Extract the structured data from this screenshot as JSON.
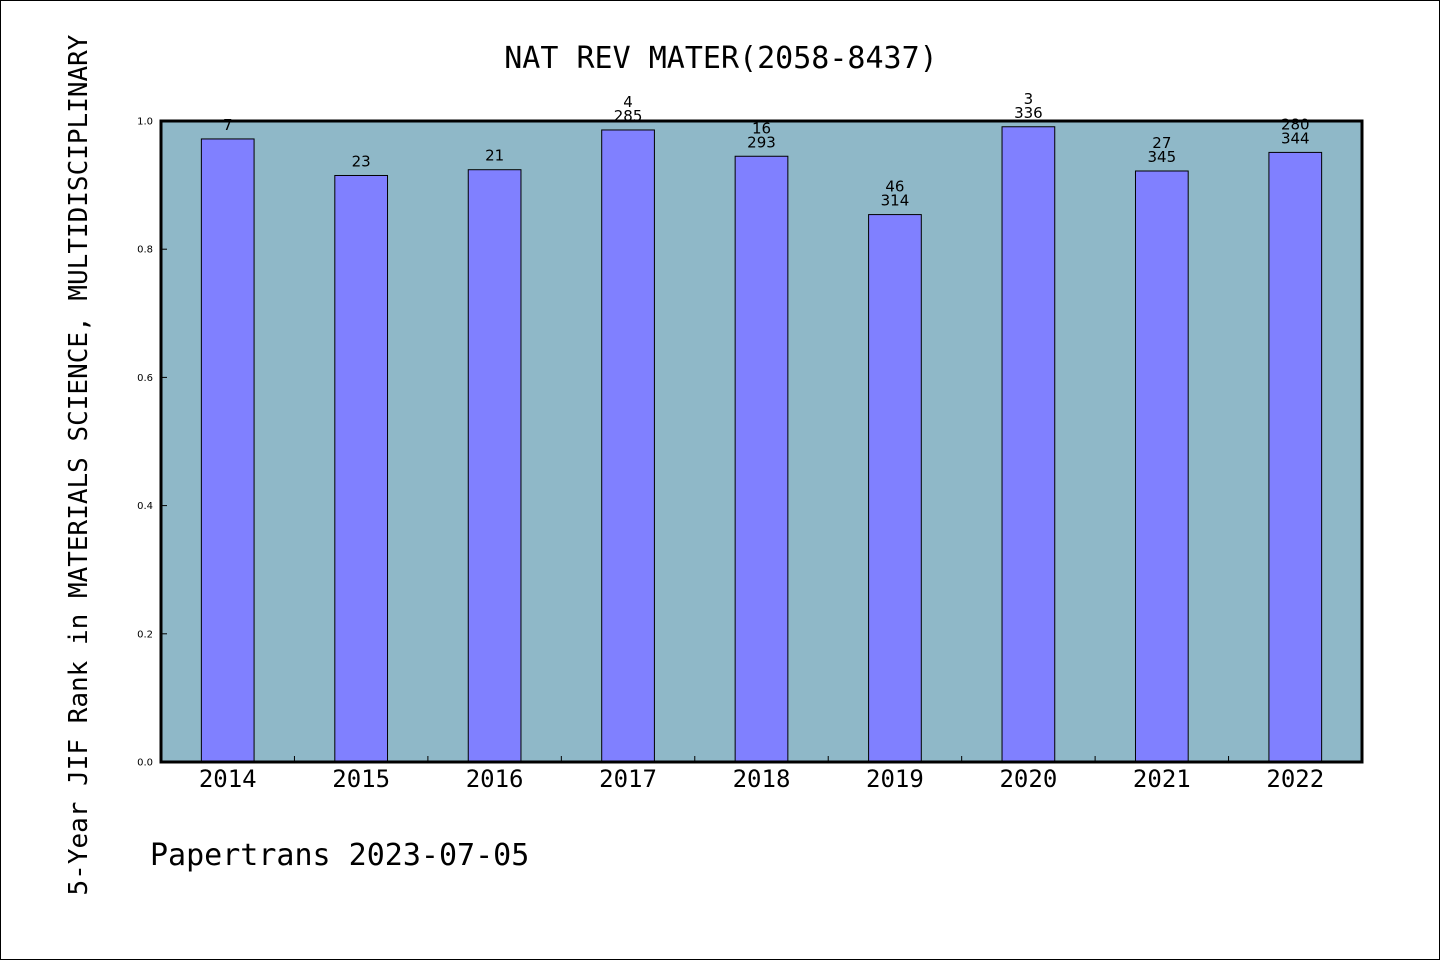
{
  "chart_data": {
    "type": "bar",
    "title": "NAT REV MATER(2058-8437)",
    "ylabel": "5-Year JIF Rank in MATERIALS SCIENCE, MULTIDISCIPLINARY",
    "xlabel": "",
    "categories": [
      "2014",
      "2015",
      "2016",
      "2017",
      "2018",
      "2019",
      "2020",
      "2021",
      "2022"
    ],
    "values": [
      0.972,
      0.915,
      0.924,
      0.986,
      0.945,
      0.854,
      0.991,
      0.922,
      0.951
    ],
    "bar_labels": [
      [
        "7"
      ],
      [
        "23"
      ],
      [
        "21"
      ],
      [
        "4",
        "285"
      ],
      [
        "16",
        "293"
      ],
      [
        "46",
        "314"
      ],
      [
        "3",
        "336"
      ],
      [
        "27",
        "345"
      ],
      [
        "280",
        "344"
      ]
    ],
    "ylim": [
      0,
      1.0
    ],
    "yticks": [
      "0.0",
      "0.2",
      "0.4",
      "0.6",
      "0.8",
      "1.0"
    ],
    "grid": false,
    "colors": {
      "plot_background": "#8fb8c8",
      "bar_fill": "#8080ff",
      "bar_stroke": "#000000"
    }
  },
  "footer": "Papertrans 2023-07-05"
}
